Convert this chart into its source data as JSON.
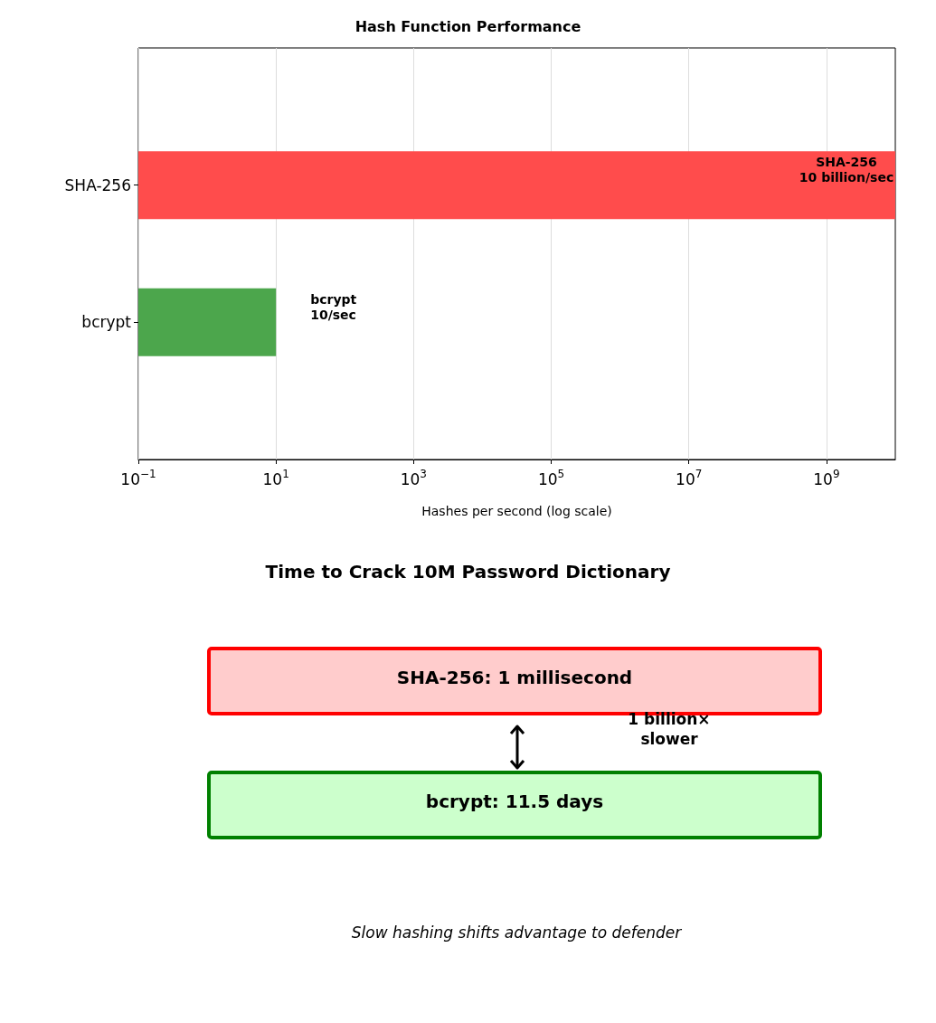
{
  "chart_data": [
    {
      "type": "bar",
      "title": "Hash Function Performance",
      "xlabel": "Hashes per second (log scale)",
      "orientation": "horizontal",
      "categories": [
        "SHA-256",
        "bcrypt"
      ],
      "values": [
        10000000000,
        10
      ],
      "colors": [
        "#ff4c4c",
        "#4ca64c"
      ],
      "value_labels": [
        "SHA-256\n10 billion/sec",
        "bcrypt\n10/sec"
      ],
      "log": "x",
      "xlim": [
        0.1,
        10000000000
      ],
      "xticks": [
        {
          "value": 0.1,
          "label": "10$^{−1}$"
        },
        {
          "value": 10,
          "label": "10$^{1}$"
        },
        {
          "value": 1000,
          "label": "10$^{3}$"
        },
        {
          "value": 100000,
          "label": "10$^{5}$"
        },
        {
          "value": 10000000,
          "label": "10$^{7}$"
        },
        {
          "value": 1000000000,
          "label": "10$^{9}$"
        }
      ],
      "grid": "x"
    },
    {
      "type": "other",
      "title": "Time to Crack 10M Password Dictionary",
      "annotations": [
        "SHA-256: 1 millisecond",
        "bcrypt: 11.5 days",
        "1 billion×\nslower",
        "Slow hashing shifts advantage to defender"
      ]
    }
  ]
}
